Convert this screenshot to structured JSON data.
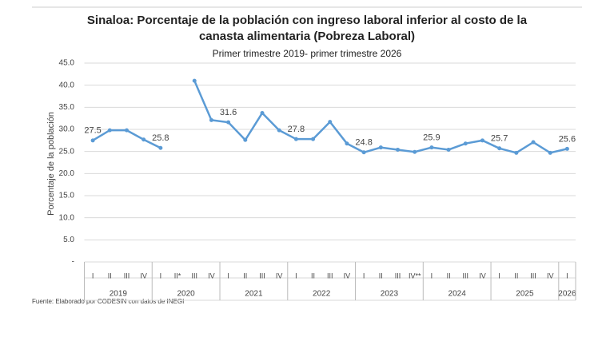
{
  "chart_data": {
    "type": "line",
    "title": "Sinaloa: Porcentaje de la población con ingreso laboral inferior al costo de la canasta alimentaria (Pobreza Laboral)",
    "subtitle": "Primer trimestre 2019- primer trimestre 2026",
    "y_label": "Porcentaje de la población",
    "source": "Fuente: Elaborado por CODESIN con datos de INEGI",
    "groups": [
      {
        "name": "2019",
        "categories": [
          "I",
          "II",
          "III",
          "IV"
        ]
      },
      {
        "name": "2020",
        "categories": [
          "I",
          "II*",
          "III",
          "IV"
        ]
      },
      {
        "name": "2021",
        "categories": [
          "I",
          "II",
          "III",
          "IV"
        ]
      },
      {
        "name": "2022",
        "categories": [
          "I",
          "II",
          "III",
          "IV"
        ]
      },
      {
        "name": "2023",
        "categories": [
          "I",
          "II",
          "III",
          "IV**"
        ]
      },
      {
        "name": "2024",
        "categories": [
          "I",
          "II",
          "III",
          "IV"
        ]
      },
      {
        "name": "2025",
        "categories": [
          "I",
          "II",
          "III",
          "IV"
        ]
      },
      {
        "name": "2026",
        "categories": [
          "I"
        ]
      }
    ],
    "series": [
      {
        "name": "Pobreza Laboral",
        "color": "#5b9bd5",
        "values": [
          27.5,
          29.8,
          29.8,
          27.7,
          25.8,
          null,
          41.0,
          32.1,
          31.6,
          27.6,
          33.7,
          29.8,
          27.8,
          27.8,
          31.7,
          26.8,
          24.8,
          25.9,
          25.4,
          24.9,
          25.9,
          25.4,
          26.8,
          27.5,
          25.7,
          24.7,
          27.1,
          24.7,
          25.6
        ],
        "value_labels": [
          "27.5",
          null,
          null,
          null,
          "25.8",
          null,
          null,
          null,
          "31.6",
          null,
          null,
          null,
          "27.8",
          null,
          null,
          null,
          "24.8",
          null,
          null,
          null,
          "25.9",
          null,
          null,
          null,
          "25.7",
          null,
          null,
          null,
          "25.6"
        ]
      }
    ],
    "ylim": [
      0,
      45
    ],
    "yticks": [
      {
        "value": 0,
        "label": "-"
      },
      {
        "value": 5,
        "label": "5.0"
      },
      {
        "value": 10,
        "label": "10.0"
      },
      {
        "value": 15,
        "label": "15.0"
      },
      {
        "value": 20,
        "label": "20.0"
      },
      {
        "value": 25,
        "label": "25.0"
      },
      {
        "value": 30,
        "label": "30.0"
      },
      {
        "value": 35,
        "label": "35.0"
      },
      {
        "value": 40,
        "label": "40.0"
      },
      {
        "value": 45,
        "label": "45.0"
      }
    ],
    "grid": true
  }
}
